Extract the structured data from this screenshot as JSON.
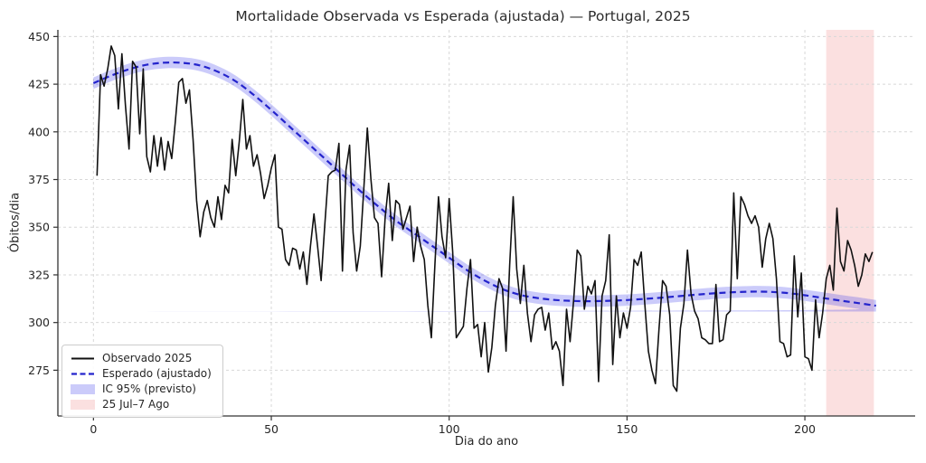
{
  "title": "Mortalidade Observada vs Esperada (ajustada) — Portugal, 2025",
  "legend": {
    "items": [
      {
        "label": "Observado 2025",
        "swatch": "solid-line"
      },
      {
        "label": "Esperado (ajustado)",
        "swatch": "dashed-line"
      },
      {
        "label": "IC 95% (previsto)",
        "swatch": "filled-patch"
      },
      {
        "label": "25 Jul–7 Ago",
        "swatch": "filled-patch"
      }
    ]
  },
  "chart_data": {
    "type": "line",
    "title": "Mortalidade Observada vs Esperada (ajustada) — Portugal, 2025",
    "xlabel": "Dia do ano",
    "ylabel": "Óbitos/dia",
    "xlim": [
      -10,
      231
    ],
    "ylim": [
      251,
      453.5
    ],
    "xticks": [
      0,
      50,
      100,
      150,
      200
    ],
    "yticks": [
      275,
      300,
      325,
      350,
      375,
      400,
      425,
      450
    ],
    "grid": true,
    "grid_color": "#d7d7d7",
    "legend_position": "lower left",
    "series": [
      {
        "name": "Observado 2025",
        "type": "line",
        "style": "solid",
        "color": "#111111",
        "x_start": 1,
        "x_step": 1,
        "values": [
          377,
          430,
          424,
          433,
          445,
          440,
          412,
          441,
          414,
          391,
          437,
          434,
          399,
          433,
          387,
          379,
          398,
          382,
          397,
          380,
          395,
          386,
          405,
          426,
          428,
          415,
          422,
          396,
          364,
          345,
          358,
          364,
          355,
          350,
          366,
          354,
          372,
          368,
          396,
          377,
          395,
          417,
          391,
          398,
          382,
          388,
          378,
          365,
          372,
          381,
          388,
          350,
          349,
          333,
          330,
          339,
          338,
          328,
          337,
          320,
          340,
          357,
          340,
          322,
          350,
          377,
          379,
          380,
          394,
          327,
          380,
          393,
          347,
          327,
          340,
          370,
          402,
          375,
          355,
          352,
          324,
          355,
          373,
          343,
          364,
          362,
          349,
          355,
          361,
          332,
          350,
          340,
          333,
          309,
          292,
          331,
          366,
          345,
          334,
          365,
          337,
          292,
          295,
          298,
          318,
          333,
          297,
          299,
          282,
          300,
          274,
          287,
          309,
          323,
          318,
          285,
          330,
          366,
          328,
          310,
          330,
          305,
          290,
          304,
          307,
          308,
          296,
          305,
          286,
          290,
          285,
          267,
          307,
          290,
          312,
          338,
          335,
          307,
          319,
          315,
          322,
          269,
          314,
          322,
          346,
          278,
          314,
          292,
          305,
          297,
          308,
          333,
          330,
          337,
          310,
          285,
          275,
          268,
          297,
          322,
          319,
          304,
          267,
          264,
          297,
          310,
          338,
          315,
          306,
          302,
          292,
          291,
          289,
          289,
          320,
          290,
          291,
          304,
          306,
          368,
          323,
          366,
          362,
          356,
          352,
          356,
          350,
          329,
          344,
          352,
          344,
          323,
          290,
          289,
          282,
          283,
          335,
          303,
          326,
          282,
          281,
          275,
          312,
          292,
          305,
          323,
          330,
          317,
          360,
          332,
          327,
          343,
          338,
          330,
          319,
          325,
          336,
          332,
          337
        ]
      },
      {
        "name": "Esperado (ajustado)",
        "type": "line",
        "style": "dashed",
        "color": "#2424cc",
        "x": [
          0,
          5,
          10,
          15,
          20,
          25,
          30,
          35,
          40,
          45,
          50,
          55,
          60,
          65,
          70,
          75,
          80,
          85,
          90,
          95,
          100,
          105,
          110,
          115,
          120,
          125,
          130,
          135,
          140,
          145,
          150,
          155,
          160,
          165,
          170,
          175,
          180,
          185,
          190,
          195,
          200,
          205,
          210,
          215,
          220
        ],
        "values": [
          425.5,
          429.5,
          432.8,
          435.2,
          436.3,
          436.2,
          434.8,
          431.5,
          426.5,
          419.5,
          411.5,
          403,
          394.5,
          386,
          377.5,
          369,
          361,
          353.5,
          347,
          340.5,
          334,
          327.5,
          322,
          317.5,
          314.5,
          312.8,
          311.8,
          311.3,
          311.2,
          311.4,
          311.8,
          312.4,
          313.1,
          313.9,
          314.7,
          315.4,
          315.9,
          316.2,
          316.1,
          315.5,
          314.3,
          312.9,
          311.5,
          310.2,
          308.8
        ]
      },
      {
        "name": "IC 95% (previsto)",
        "type": "band",
        "color": "rgba(68,68,238,0.28)",
        "margin": 3
      },
      {
        "name": "25 Jul–7 Ago",
        "type": "vspan",
        "color": "rgba(230,60,60,0.16)",
        "x_from": 206,
        "x_to": 219.4
      }
    ]
  }
}
